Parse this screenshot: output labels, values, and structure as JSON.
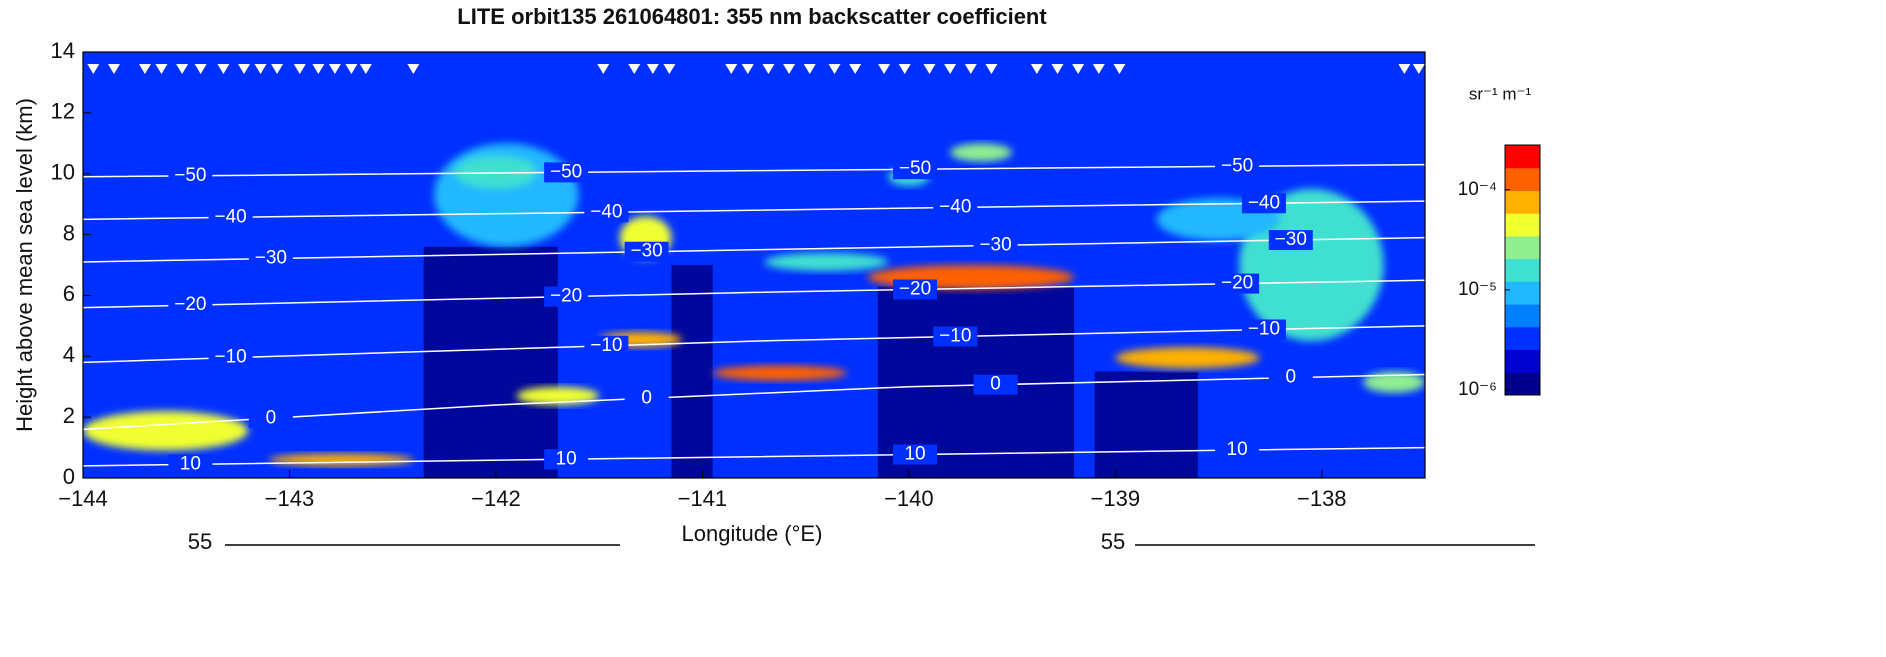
{
  "chart_data": {
    "type": "curtain",
    "title": "LITE orbit135 261064801: 355 nm backscatter coefficient",
    "xlabel": "Longitude (°E)",
    "ylabel": "Height above mean sea level (km)",
    "xlim": [
      -144,
      -137.5
    ],
    "ylim": [
      0,
      14
    ],
    "xticks": [
      {
        "value": -144,
        "label": "−144"
      },
      {
        "value": -143,
        "label": "−143"
      },
      {
        "value": -142,
        "label": "−142"
      },
      {
        "value": -141,
        "label": "−141"
      },
      {
        "value": -140,
        "label": "−140"
      },
      {
        "value": -139,
        "label": "−139"
      },
      {
        "value": -138,
        "label": "−138"
      }
    ],
    "yticks": [
      0,
      2,
      4,
      6,
      8,
      10,
      12,
      14
    ],
    "colorbar": {
      "units": "sr⁻¹ m⁻¹",
      "scale": "log",
      "clim": [
        8.9e-07,
        0.00028
      ],
      "ticks": [
        {
          "value": 1e-06,
          "label": "10⁻⁶"
        },
        {
          "value": 1e-05,
          "label": "10⁻⁵"
        },
        {
          "value": 0.0001,
          "label": "10⁻⁴"
        }
      ],
      "colors": [
        "#00008a",
        "#0000d0",
        "#0030ff",
        "#0080ff",
        "#20b8ff",
        "#40e0d0",
        "#90ee90",
        "#f0ff30",
        "#ffb000",
        "#ff6000",
        "#ff0000"
      ]
    },
    "clear_air_value": 3e-06,
    "attenuated": [
      {
        "lon": [
          -142.35,
          -141.7
        ],
        "height": [
          0,
          7.6
        ],
        "value": 1e-06
      },
      {
        "lon": [
          -141.15,
          -140.95
        ],
        "height": [
          0,
          7.0
        ],
        "value": 1e-06
      },
      {
        "lon": [
          -140.15,
          -139.2
        ],
        "height": [
          0,
          6.3
        ],
        "value": 1e-06
      },
      {
        "lon": [
          -139.1,
          -138.6
        ],
        "height": [
          0,
          3.5
        ],
        "value": 1e-06
      }
    ],
    "clouds": [
      {
        "lon": [
          -144,
          -143.2
        ],
        "height": [
          0.9,
          2.2
        ],
        "value": 4e-05
      },
      {
        "lon": [
          -143.1,
          -142.4
        ],
        "height": [
          0.4,
          0.8
        ],
        "value": 6e-05
      },
      {
        "lon": [
          -142.3,
          -141.6
        ],
        "height": [
          7.6,
          11.0
        ],
        "value": 1e-05
      },
      {
        "lon": [
          -142.2,
          -141.8
        ],
        "height": [
          9.5,
          10.6
        ],
        "value": 2e-05
      },
      {
        "lon": [
          -141.4,
          -141.15
        ],
        "height": [
          7.2,
          8.6
        ],
        "value": 4e-05
      },
      {
        "lon": [
          -141.9,
          -141.5
        ],
        "height": [
          2.4,
          3.0
        ],
        "value": 5e-05
      },
      {
        "lon": [
          -141.5,
          -141.1
        ],
        "height": [
          4.3,
          4.8
        ],
        "value": 8e-05
      },
      {
        "lon": [
          -140.95,
          -140.3
        ],
        "height": [
          3.2,
          3.7
        ],
        "value": 0.00012
      },
      {
        "lon": [
          -140.2,
          -139.2
        ],
        "height": [
          6.2,
          7.0
        ],
        "value": 0.00015
      },
      {
        "lon": [
          -139.8,
          -139.5
        ],
        "height": [
          10.4,
          11.0
        ],
        "value": 3e-05
      },
      {
        "lon": [
          -140.1,
          -139.9
        ],
        "height": [
          9.6,
          10.2
        ],
        "value": 2e-05
      },
      {
        "lon": [
          -139.0,
          -138.3
        ],
        "height": [
          3.6,
          4.3
        ],
        "value": 6e-05
      },
      {
        "lon": [
          -138.4,
          -137.7
        ],
        "height": [
          4.5,
          9.5
        ],
        "value": 1.5e-05
      },
      {
        "lon": [
          -138.8,
          -138.2
        ],
        "height": [
          7.8,
          9.2
        ],
        "value": 1e-05
      },
      {
        "lon": [
          -137.8,
          -137.5
        ],
        "height": [
          2.8,
          3.5
        ],
        "value": 3e-05
      },
      {
        "lon": [
          -140.7,
          -140.1
        ],
        "height": [
          6.8,
          7.4
        ],
        "value": 1.5e-05
      }
    ],
    "isotherms": [
      {
        "level": {
          "value": -50,
          "label": "−50"
        },
        "lon": [
          -144,
          -140.75,
          -137.5
        ],
        "height": [
          9.9,
          10.1,
          10.3
        ]
      },
      {
        "level": {
          "value": -40,
          "label": "−40"
        },
        "lon": [
          -144,
          -140.75,
          -137.5
        ],
        "height": [
          8.5,
          8.8,
          9.1
        ]
      },
      {
        "level": {
          "value": -30,
          "label": "−30"
        },
        "lon": [
          -144,
          -140.75,
          -137.5
        ],
        "height": [
          7.1,
          7.5,
          7.9
        ]
      },
      {
        "level": {
          "value": -20,
          "label": "−20"
        },
        "lon": [
          -144,
          -140.75,
          -137.5
        ],
        "height": [
          5.6,
          6.1,
          6.5
        ]
      },
      {
        "level": {
          "value": -10,
          "label": "−10"
        },
        "lon": [
          -144,
          -140.75,
          -137.5
        ],
        "height": [
          3.8,
          4.5,
          5.0
        ]
      },
      {
        "level": 0,
        "lon": [
          -144,
          -142,
          -140,
          -137.5
        ],
        "height": [
          1.6,
          2.4,
          3.0,
          3.4
        ]
      },
      {
        "level": 10,
        "lon": [
          -144,
          -140.75,
          -137.5
        ],
        "height": [
          0.4,
          0.7,
          1.0
        ]
      }
    ],
    "surface_flags": [
      -143.95,
      -143.85,
      -143.7,
      -143.62,
      -143.52,
      -143.43,
      -143.32,
      -143.22,
      -143.14,
      -143.06,
      -142.95,
      -142.86,
      -142.78,
      -142.7,
      -142.63,
      -142.4,
      -141.48,
      -141.33,
      -141.24,
      -141.16,
      -140.86,
      -140.78,
      -140.68,
      -140.58,
      -140.48,
      -140.36,
      -140.26,
      -140.12,
      -140.02,
      -139.9,
      -139.8,
      -139.7,
      -139.6,
      -139.38,
      -139.28,
      -139.18,
      -139.08,
      -138.98,
      -137.6,
      -137.53
    ]
  },
  "lower_panel_tick_labels": [
    "55",
    "55"
  ]
}
